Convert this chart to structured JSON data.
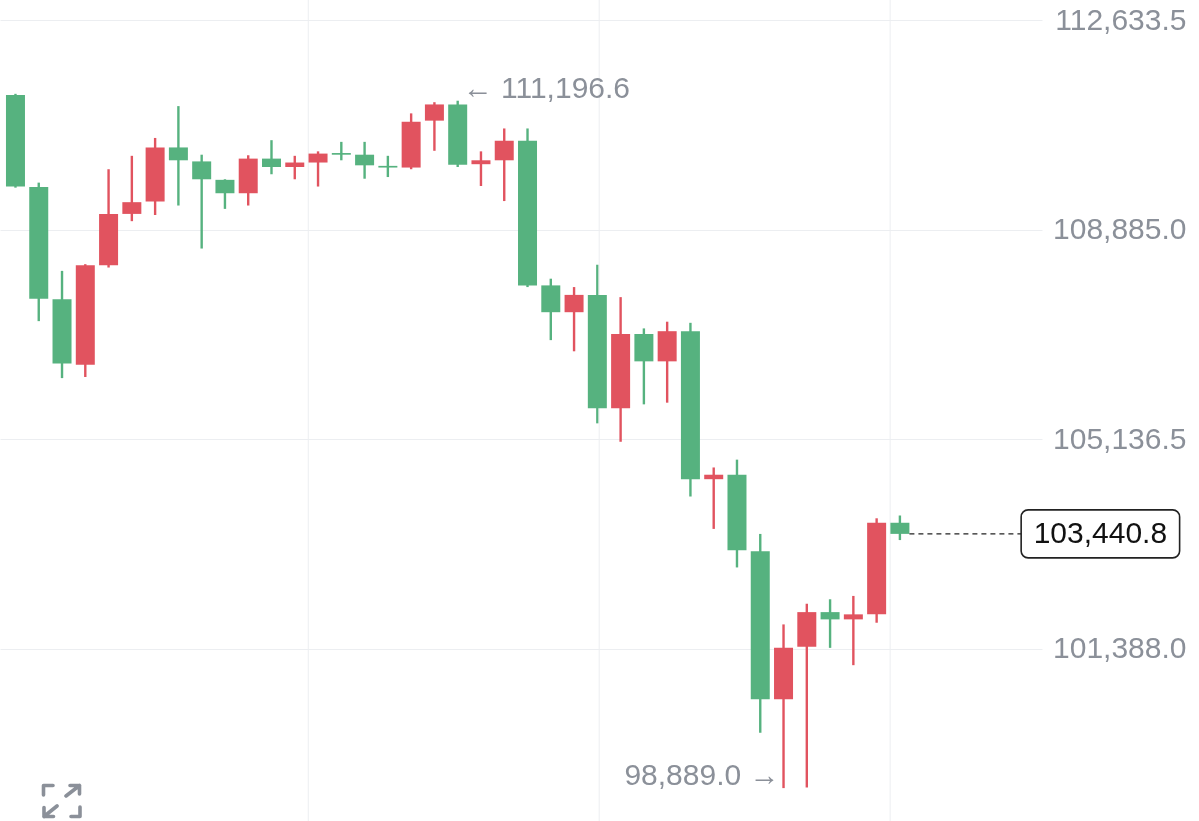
{
  "chart_data": {
    "type": "candlestick",
    "categories": [
      null,
      null,
      null,
      null,
      null,
      null,
      null,
      null,
      null,
      null,
      null,
      null,
      null,
      null,
      null,
      null,
      null,
      null,
      null,
      null,
      null,
      null,
      null,
      null,
      null,
      null,
      null,
      null,
      null,
      null,
      null,
      null,
      null,
      null,
      null,
      null,
      null,
      null,
      null
    ],
    "ohlc": [
      [
        111300,
        111320,
        109640,
        109660
      ],
      [
        109650,
        109730,
        107250,
        107650
      ],
      [
        107640,
        108150,
        106230,
        106490
      ],
      [
        106470,
        108270,
        106250,
        108250
      ],
      [
        108250,
        109970,
        108210,
        109170
      ],
      [
        109170,
        110210,
        109040,
        109380
      ],
      [
        109390,
        110530,
        109150,
        110360
      ],
      [
        110360,
        111100,
        109320,
        110130
      ],
      [
        110110,
        110230,
        108550,
        109790
      ],
      [
        109780,
        109790,
        109260,
        109540
      ],
      [
        109540,
        110220,
        109320,
        110160
      ],
      [
        110160,
        110490,
        109880,
        110010
      ],
      [
        110010,
        110210,
        109790,
        110090
      ],
      [
        110090,
        110290,
        109660,
        110250
      ],
      [
        110260,
        110460,
        110130,
        110230
      ],
      [
        110230,
        110460,
        109800,
        110040
      ],
      [
        110030,
        110210,
        109830,
        110000
      ],
      [
        110000,
        110970,
        109970,
        110820
      ],
      [
        110840,
        111170,
        110300,
        111130
      ],
      [
        111130,
        111196.6,
        110010,
        110050
      ],
      [
        110060,
        110290,
        109670,
        110130
      ],
      [
        110130,
        110700,
        109400,
        110480
      ],
      [
        110480,
        110700,
        107860,
        107890
      ],
      [
        107890,
        108010,
        106910,
        107410
      ],
      [
        107410,
        107860,
        106710,
        107720
      ],
      [
        107720,
        108260,
        105420,
        105690
      ],
      [
        105690,
        107680,
        105090,
        107020
      ],
      [
        107020,
        107120,
        105760,
        106530
      ],
      [
        106530,
        107240,
        105790,
        107070
      ],
      [
        107070,
        107220,
        104110,
        104420
      ],
      [
        104420,
        104630,
        103530,
        104500
      ],
      [
        104500,
        104770,
        102840,
        103150
      ],
      [
        103130,
        103440,
        99880,
        100480
      ],
      [
        100480,
        101820,
        98889,
        101400
      ],
      [
        101420,
        102190,
        98900,
        102040
      ],
      [
        102040,
        102270,
        101400,
        101910
      ],
      [
        101910,
        102330,
        101090,
        102000
      ],
      [
        102000,
        103720,
        101850,
        103640
      ],
      [
        103640,
        103770,
        103330,
        103440.8
      ]
    ],
    "colors": [
      "#56b27f",
      "#56b27f",
      "#56b27f",
      "#e1535f",
      "#e1535f",
      "#e1535f",
      "#e1535f",
      "#56b27f",
      "#56b27f",
      "#56b27f",
      "#e1535f",
      "#56b27f",
      "#e1535f",
      "#e1535f",
      "#56b27f",
      "#56b27f",
      "#56b27f",
      "#e1535f",
      "#e1535f",
      "#56b27f",
      "#e1535f",
      "#e1535f",
      "#56b27f",
      "#56b27f",
      "#e1535f",
      "#56b27f",
      "#e1535f",
      "#56b27f",
      "#e1535f",
      "#56b27f",
      "#e1535f",
      "#56b27f",
      "#56b27f",
      "#e1535f",
      "#e1535f",
      "#56b27f",
      "#e1535f",
      "#e1535f",
      "#56b27f"
    ],
    "ylim": [
      98300,
      113000
    ],
    "yticks": [
      {
        "value": 101388,
        "label": "101,388.0"
      },
      {
        "value": 105136.5,
        "label": "105,136.5"
      },
      {
        "value": 108885,
        "label": "108,885.0"
      },
      {
        "value": 112633.5,
        "label": "112,633.5"
      }
    ],
    "grid": true,
    "tick_labels": "y",
    "ref_lines": [
      {
        "axis": "y",
        "value": 103440.8,
        "label": "103,440.8",
        "line_style": "dashed",
        "color": "#222222"
      }
    ],
    "annotations": [
      "← 111,196.6",
      "98,889.0 →"
    ]
  }
}
